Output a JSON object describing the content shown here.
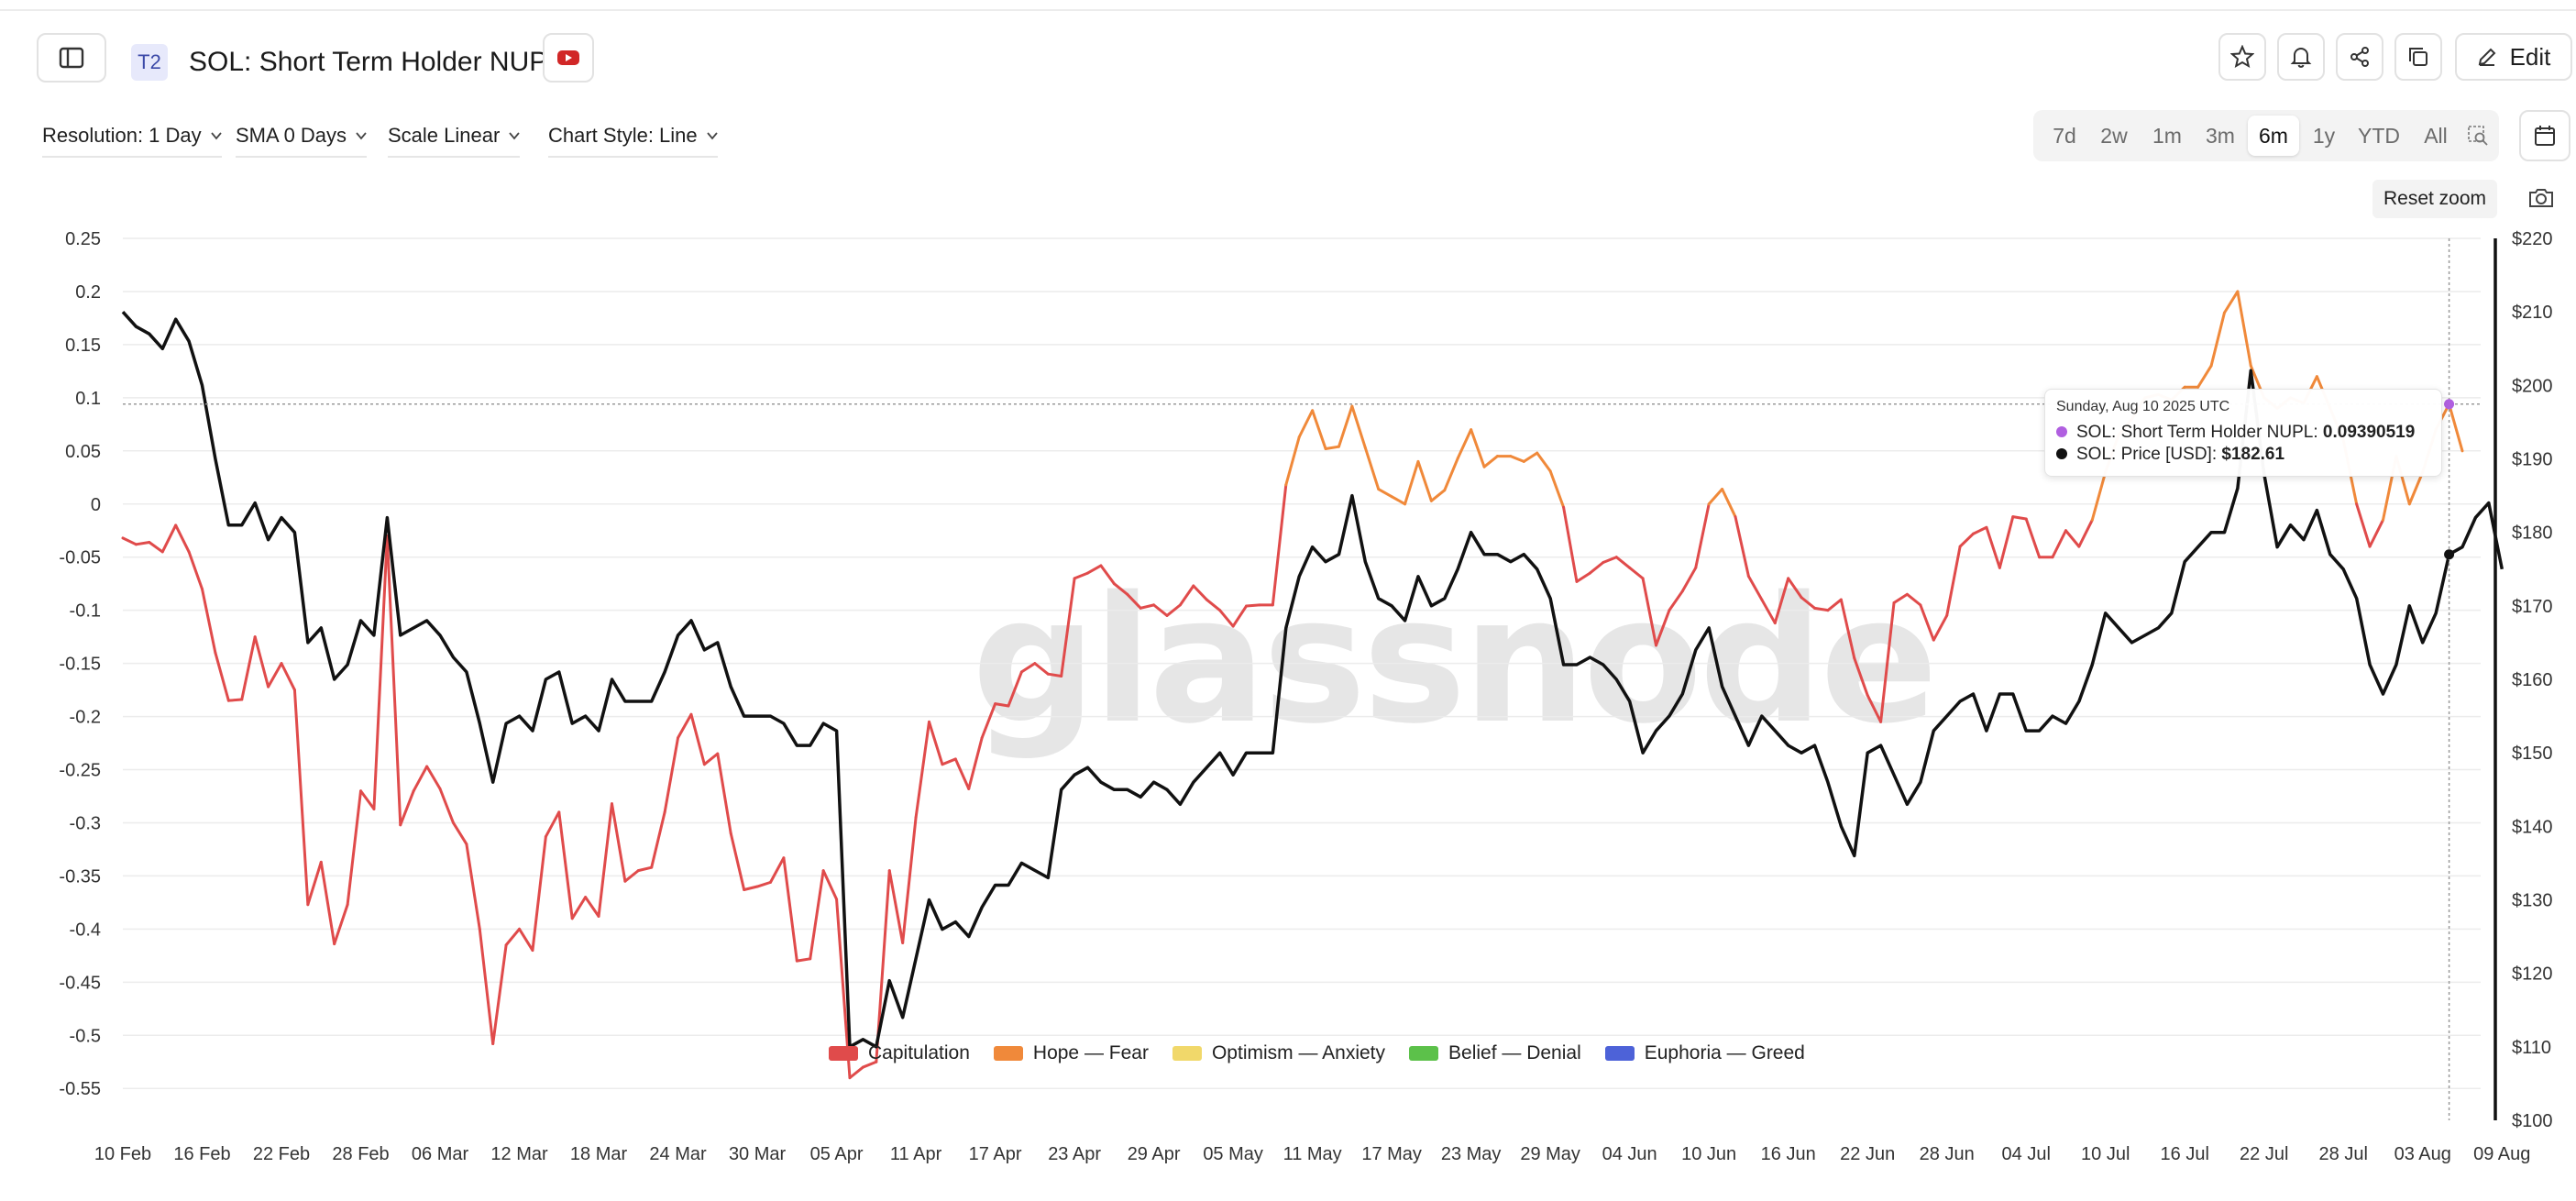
{
  "header": {
    "badge": "T2",
    "title": "SOL: Short Term Holder NUPL",
    "edit_label": "Edit"
  },
  "icons": {
    "sidebar_toggle": "sidebar-toggle-icon",
    "youtube": "youtube-icon",
    "star": "star-icon",
    "bell": "bell-icon",
    "share": "share-icon",
    "copy": "copy-icon",
    "edit": "pencil-icon",
    "zoom_select": "zoom-select-icon",
    "calendar": "calendar-icon",
    "camera": "camera-icon"
  },
  "controls": {
    "resolution": "Resolution: 1 Day",
    "sma": "SMA 0 Days",
    "scale": "Scale Linear",
    "chart_style": "Chart Style: Line"
  },
  "ranges": [
    "7d",
    "2w",
    "1m",
    "3m",
    "6m",
    "1y",
    "YTD",
    "All"
  ],
  "active_range": "6m",
  "reset_zoom": "Reset zoom",
  "watermark": "glassnode",
  "tooltip": {
    "date": "Sunday, Aug 10 2025 UTC",
    "nupl_label": "SOL: Short Term Holder NUPL:",
    "nupl_value": "0.09390519",
    "price_label": "SOL: Price [USD]:",
    "price_value": "$182.61",
    "nupl_color": "#b05fe0",
    "price_color": "#111111"
  },
  "legend": [
    {
      "label": "Capitulation",
      "color": "#e04b4b"
    },
    {
      "label": "Hope — Fear",
      "color": "#f0893a"
    },
    {
      "label": "Optimism — Anxiety",
      "color": "#f1d86a"
    },
    {
      "label": "Belief — Denial",
      "color": "#5cc14a"
    },
    {
      "label": "Euphoria — Greed",
      "color": "#4d62d8"
    }
  ],
  "chart_data": {
    "type": "line",
    "x_ticks": [
      "10 Feb",
      "16 Feb",
      "22 Feb",
      "28 Feb",
      "06 Mar",
      "12 Mar",
      "18 Mar",
      "24 Mar",
      "30 Mar",
      "05 Apr",
      "11 Apr",
      "17 Apr",
      "23 Apr",
      "29 Apr",
      "05 May",
      "11 May",
      "17 May",
      "23 May",
      "29 May",
      "04 Jun",
      "10 Jun",
      "16 Jun",
      "22 Jun",
      "28 Jun",
      "04 Jul",
      "10 Jul",
      "16 Jul",
      "22 Jul",
      "28 Jul",
      "03 Aug",
      "09 Aug"
    ],
    "y_left": {
      "ylim": [
        -0.58,
        0.25
      ],
      "ticks": [
        "0.25",
        "0.2",
        "0.15",
        "0.1",
        "0.05",
        "0",
        "-0.05",
        "-0.1",
        "-0.15",
        "-0.2",
        "-0.25",
        "-0.3",
        "-0.35",
        "-0.4",
        "-0.45",
        "-0.5",
        "-0.55"
      ]
    },
    "y_right": {
      "ylim": [
        100,
        220
      ],
      "ticks": [
        "$220",
        "$210",
        "$200",
        "$190",
        "$180",
        "$170",
        "$160",
        "$150",
        "$140",
        "$130",
        "$120",
        "$110",
        "$100"
      ]
    },
    "zone_colors": {
      "capitulation": "#e04b4b",
      "hope_fear": "#f0893a"
    },
    "hope_fear_threshold": 0,
    "grid": true,
    "series": [
      {
        "name": "SOL: Short Term Holder NUPL",
        "axis": "left",
        "values": [
          -0.032,
          -0.038,
          -0.036,
          -0.045,
          -0.02,
          -0.045,
          -0.08,
          -0.14,
          -0.185,
          -0.184,
          -0.125,
          -0.172,
          -0.15,
          -0.175,
          -0.377,
          -0.337,
          -0.414,
          -0.377,
          -0.27,
          -0.287,
          -0.03,
          -0.302,
          -0.27,
          -0.247,
          -0.268,
          -0.3,
          -0.32,
          -0.4,
          -0.508,
          -0.415,
          -0.4,
          -0.42,
          -0.313,
          -0.29,
          -0.39,
          -0.37,
          -0.388,
          -0.282,
          -0.355,
          -0.345,
          -0.342,
          -0.29,
          -0.22,
          -0.198,
          -0.245,
          -0.235,
          -0.31,
          -0.363,
          -0.36,
          -0.356,
          -0.333,
          -0.43,
          -0.428,
          -0.345,
          -0.372,
          -0.54,
          -0.53,
          -0.525,
          -0.345,
          -0.413,
          -0.295,
          -0.205,
          -0.245,
          -0.24,
          -0.268,
          -0.22,
          -0.188,
          -0.19,
          -0.158,
          -0.15,
          -0.16,
          -0.162,
          -0.07,
          -0.065,
          -0.058,
          -0.075,
          -0.085,
          -0.098,
          -0.095,
          -0.105,
          -0.095,
          -0.077,
          -0.09,
          -0.1,
          -0.115,
          -0.096,
          -0.095,
          -0.095,
          0.018,
          0.063,
          0.088,
          0.052,
          0.054,
          0.092,
          0.053,
          0.014,
          0.007,
          0.0,
          0.04,
          0.003,
          0.013,
          0.043,
          0.07,
          0.035,
          0.045,
          0.045,
          0.04,
          0.048,
          0.031,
          -0.003,
          -0.073,
          -0.065,
          -0.055,
          -0.05,
          -0.06,
          -0.07,
          -0.133,
          -0.1,
          -0.082,
          -0.06,
          0.0,
          0.014,
          -0.012,
          -0.068,
          -0.09,
          -0.112,
          -0.07,
          -0.088,
          -0.098,
          -0.1,
          -0.09,
          -0.145,
          -0.18,
          -0.205,
          -0.093,
          -0.085,
          -0.095,
          -0.128,
          -0.105,
          -0.04,
          -0.028,
          -0.022,
          -0.06,
          -0.012,
          -0.014,
          -0.05,
          -0.05,
          -0.025,
          -0.04,
          -0.015,
          0.03,
          0.065,
          0.08,
          0.1,
          0.103,
          0.098,
          0.11,
          0.11,
          0.13,
          0.18,
          0.2,
          0.13,
          0.1,
          0.09,
          0.1,
          0.095,
          0.12,
          0.09,
          0.06,
          0.0,
          -0.04,
          -0.015,
          0.045,
          0.0,
          0.03,
          0.07,
          0.094,
          0.05
        ]
      },
      {
        "name": "SOL: Price [USD]",
        "axis": "right",
        "values": [
          210,
          208,
          207,
          205,
          209,
          206,
          200,
          190,
          181,
          181,
          184,
          179,
          182,
          180,
          165,
          167,
          160,
          162,
          168,
          166,
          182,
          166,
          167,
          168,
          166,
          163,
          161,
          154,
          146,
          154,
          155,
          153,
          160,
          161,
          154,
          155,
          153,
          160,
          157,
          157,
          157,
          161,
          166,
          168,
          164,
          165,
          159,
          155,
          155,
          155,
          154,
          151,
          151,
          154,
          153,
          110,
          111,
          110,
          119,
          114,
          122,
          130,
          126,
          127,
          125,
          129,
          132,
          132,
          135,
          134,
          133,
          145,
          147,
          148,
          146,
          145,
          145,
          144,
          146,
          145,
          143,
          146,
          148,
          150,
          147,
          150,
          150,
          150,
          167,
          174,
          178,
          176,
          177,
          185,
          176,
          171,
          170,
          168,
          174,
          170,
          171,
          175,
          180,
          177,
          177,
          176,
          177,
          175,
          171,
          162,
          162,
          163,
          162,
          160,
          157,
          150,
          153,
          155,
          158,
          164,
          167,
          159,
          155,
          151,
          155,
          153,
          151,
          150,
          151,
          146,
          140,
          136,
          150,
          151,
          147,
          143,
          146,
          153,
          155,
          157,
          158,
          153,
          158,
          158,
          153,
          153,
          155,
          154,
          157,
          162,
          169,
          167,
          165,
          166,
          167,
          169,
          176,
          178,
          180,
          180,
          186,
          202,
          188,
          178,
          181,
          179,
          183,
          177,
          175,
          171,
          162,
          158,
          162,
          170,
          165,
          169,
          177,
          178,
          182,
          184,
          175
        ]
      }
    ],
    "hover": {
      "date": "Aug 10 2025"
    }
  }
}
